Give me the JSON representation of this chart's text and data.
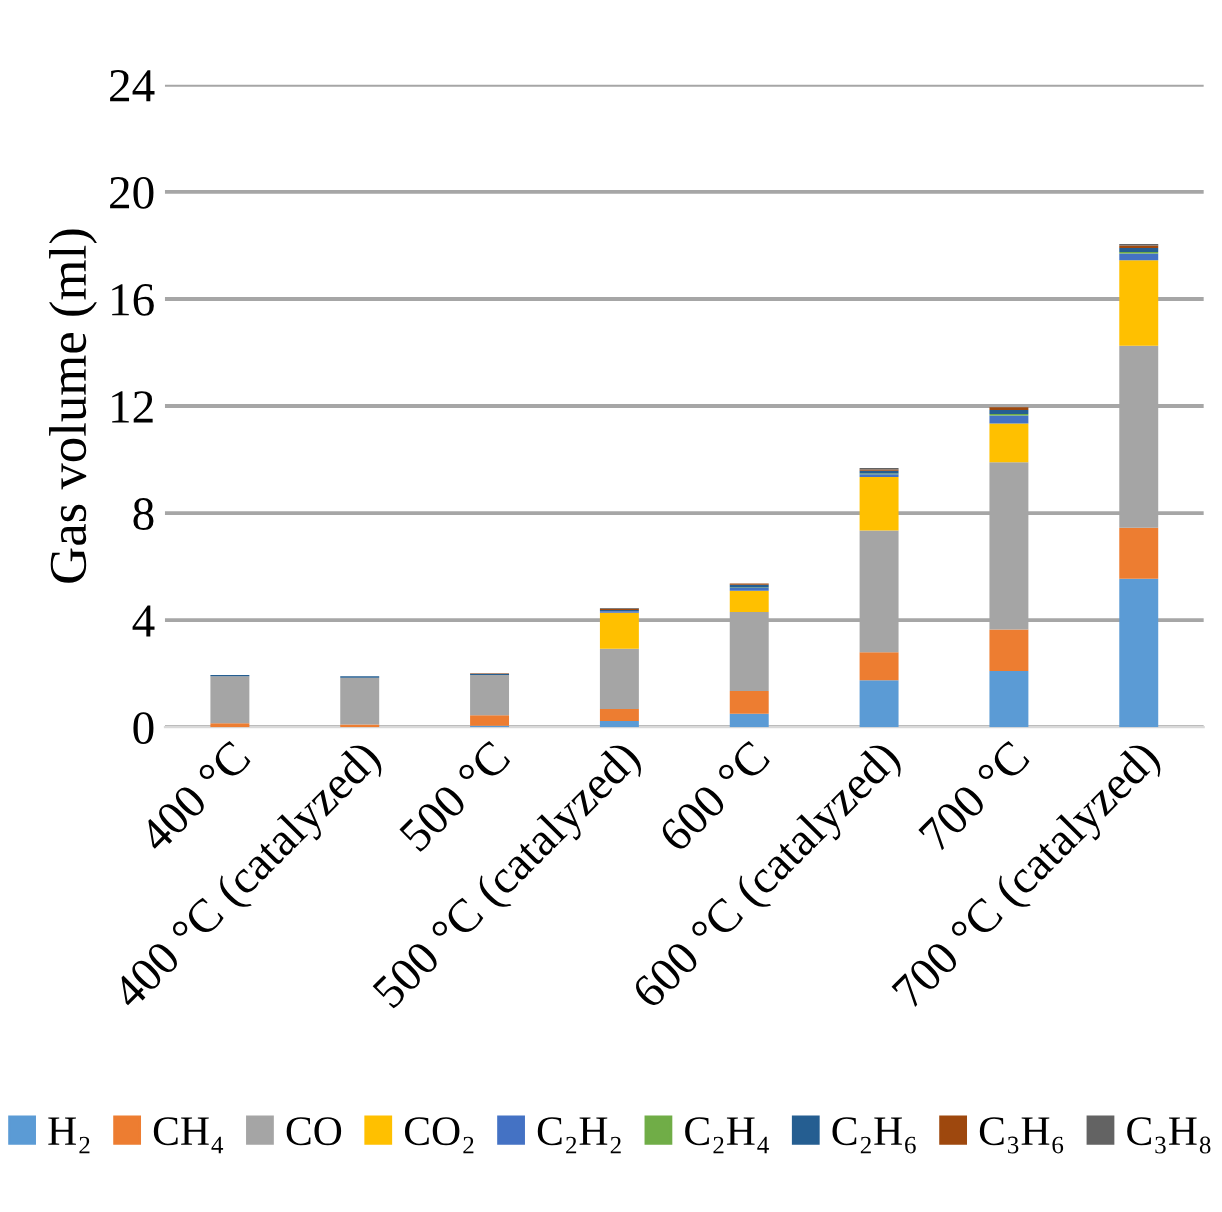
{
  "chart_data": {
    "type": "bar",
    "stacked": true,
    "ylabel": "Gas volume (ml)",
    "categories": [
      "400 °C",
      "400 °C (catalyzed)",
      "500 °C",
      "500 °C (catalyzed)",
      "600 °C",
      "600 °C (catalyzed)",
      "700 °C",
      "700 °C (catalyzed)"
    ],
    "series": [
      {
        "name": "H₂",
        "color": "#5b9bd5",
        "values": [
          0,
          0,
          0.05,
          0.23,
          0.5,
          1.75,
          2.1,
          5.55
        ]
      },
      {
        "name": "CH₄",
        "color": "#ed7d31",
        "values": [
          0.15,
          0.1,
          0.4,
          0.45,
          0.85,
          1.05,
          1.55,
          1.9
        ]
      },
      {
        "name": "CO",
        "color": "#a5a5a5",
        "values": [
          1.75,
          1.75,
          1.5,
          2.25,
          2.95,
          4.55,
          6.25,
          6.8
        ]
      },
      {
        "name": "CO₂",
        "color": "#ffc000",
        "values": [
          0,
          0,
          0,
          1.35,
          0.8,
          2.0,
          1.45,
          3.2
        ]
      },
      {
        "name": "C₂H₂",
        "color": "#4472c4",
        "values": [
          0,
          0,
          0,
          0.05,
          0.1,
          0.1,
          0.3,
          0.25
        ]
      },
      {
        "name": "C₂H₄",
        "color": "#70ad47",
        "values": [
          0,
          0,
          0,
          0,
          0.02,
          0.03,
          0.05,
          0.05
        ]
      },
      {
        "name": "C₂H₆",
        "color": "#255e91",
        "values": [
          0.05,
          0.05,
          0.05,
          0.05,
          0.1,
          0.1,
          0.15,
          0.15
        ]
      },
      {
        "name": "C₃H₆",
        "color": "#9e480e",
        "values": [
          0,
          0,
          0.02,
          0.05,
          0.05,
          0.05,
          0.1,
          0.1
        ]
      },
      {
        "name": "C₃H₈",
        "color": "#636363",
        "values": [
          0,
          0,
          0,
          0.02,
          0,
          0.05,
          0,
          0.05
        ]
      }
    ],
    "ylim": [
      0,
      24
    ],
    "yticks": [
      0,
      4,
      8,
      12,
      16,
      20,
      24
    ],
    "grid": "y",
    "legend": "bottom"
  }
}
